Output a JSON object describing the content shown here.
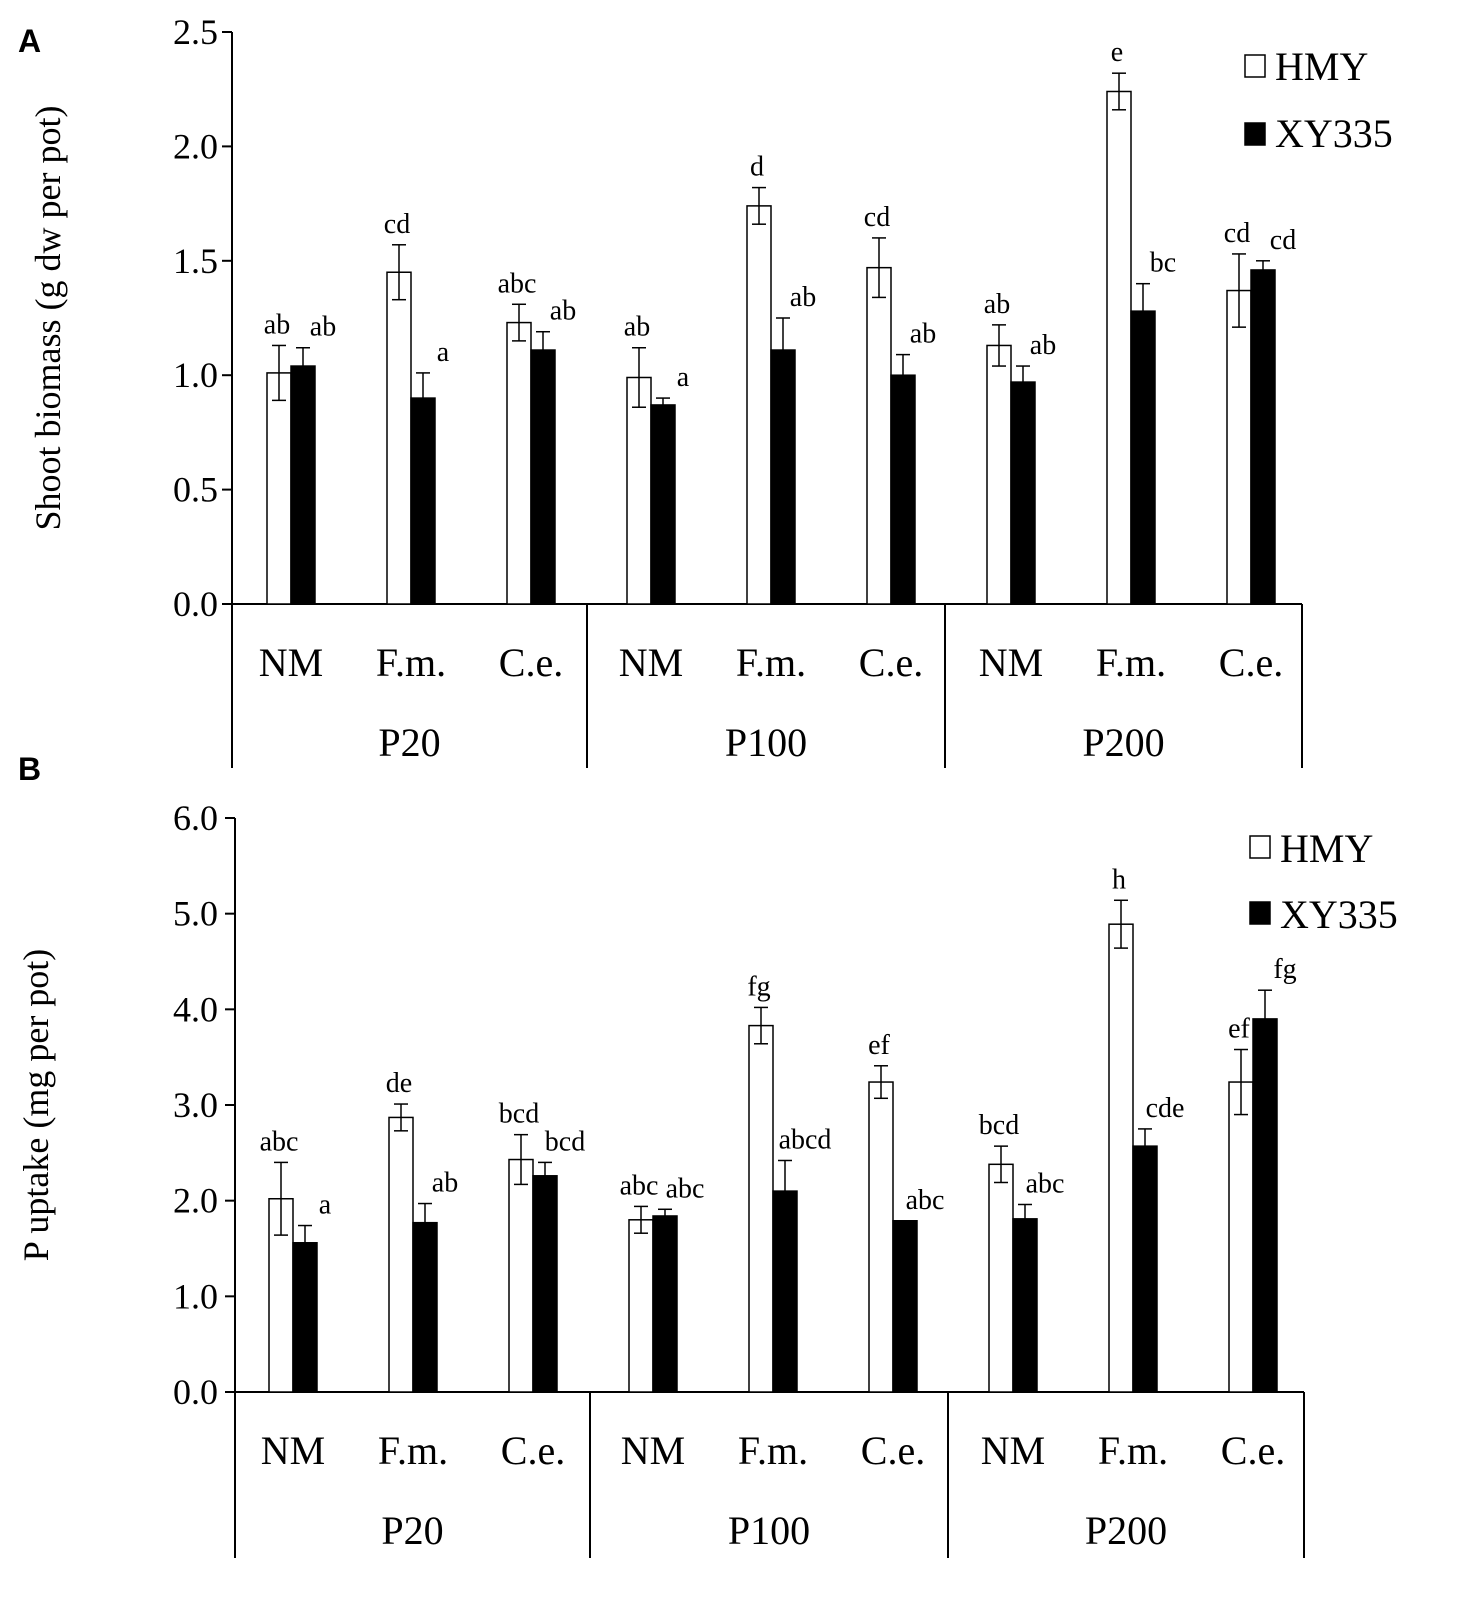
{
  "chart_data": [
    {
      "type": "bar",
      "panel_label": "A",
      "ylabel": "Shoot biomass (g dw per pot)",
      "ylim": [
        0,
        2.5
      ],
      "yticks": [
        "0.0",
        "0.5",
        "1.0",
        "1.5",
        "2.0",
        "2.5"
      ],
      "groups": [
        "P20",
        "P100",
        "P200"
      ],
      "categories": [
        "NM",
        "F.m.",
        "C.e.",
        "NM",
        "F.m.",
        "C.e.",
        "NM",
        "F.m.",
        "C.e."
      ],
      "legend": [
        "HMY",
        "XY335"
      ],
      "legend_position": "top-right",
      "series": [
        {
          "name": "HMY",
          "color": "#ffffff",
          "values": [
            1.01,
            1.45,
            1.23,
            0.99,
            1.74,
            1.47,
            1.13,
            2.24,
            1.37
          ],
          "errors": [
            0.12,
            0.12,
            0.08,
            0.13,
            0.08,
            0.13,
            0.09,
            0.08,
            0.16
          ],
          "letters": [
            "ab",
            "cd",
            "abc",
            "ab",
            "d",
            "cd",
            "ab",
            "e",
            "cd"
          ]
        },
        {
          "name": "XY335",
          "color": "#000000",
          "values": [
            1.04,
            0.9,
            1.11,
            0.87,
            1.11,
            1.0,
            0.97,
            1.28,
            1.46
          ],
          "errors": [
            0.08,
            0.11,
            0.08,
            0.03,
            0.14,
            0.09,
            0.07,
            0.12,
            0.04
          ],
          "letters": [
            "ab",
            "a",
            "ab",
            "a",
            "ab",
            "ab",
            "ab",
            "bc",
            "cd"
          ]
        }
      ]
    },
    {
      "type": "bar",
      "panel_label": "B",
      "ylabel": "P uptake (mg per pot)",
      "ylim": [
        0,
        6
      ],
      "yticks": [
        "0.0",
        "1.0",
        "2.0",
        "3.0",
        "4.0",
        "5.0",
        "6.0"
      ],
      "groups": [
        "P20",
        "P100",
        "P200"
      ],
      "categories": [
        "NM",
        "F.m.",
        "C.e.",
        "NM",
        "F.m.",
        "C.e.",
        "NM",
        "F.m.",
        "C.e."
      ],
      "legend": [
        "HMY",
        "XY335"
      ],
      "legend_position": "top-right",
      "series": [
        {
          "name": "HMY",
          "color": "#ffffff",
          "values": [
            2.02,
            2.87,
            2.43,
            1.8,
            3.83,
            3.24,
            2.38,
            4.89,
            3.24
          ],
          "errors": [
            0.38,
            0.14,
            0.26,
            0.14,
            0.19,
            0.17,
            0.19,
            0.25,
            0.34
          ],
          "letters": [
            "abc",
            "de",
            "bcd",
            "abc",
            "fg",
            "ef",
            "bcd",
            "h",
            "ef"
          ]
        },
        {
          "name": "XY335",
          "color": "#000000",
          "values": [
            1.56,
            1.77,
            2.26,
            1.84,
            2.1,
            1.79,
            1.81,
            2.57,
            3.9
          ],
          "errors": [
            0.18,
            0.2,
            0.14,
            0.07,
            0.32,
            0.0,
            0.15,
            0.18,
            0.3
          ],
          "letters": [
            "a",
            "ab",
            "bcd",
            "abc",
            "abcd",
            "abc",
            "abc",
            "cde",
            "fg"
          ]
        }
      ]
    }
  ]
}
